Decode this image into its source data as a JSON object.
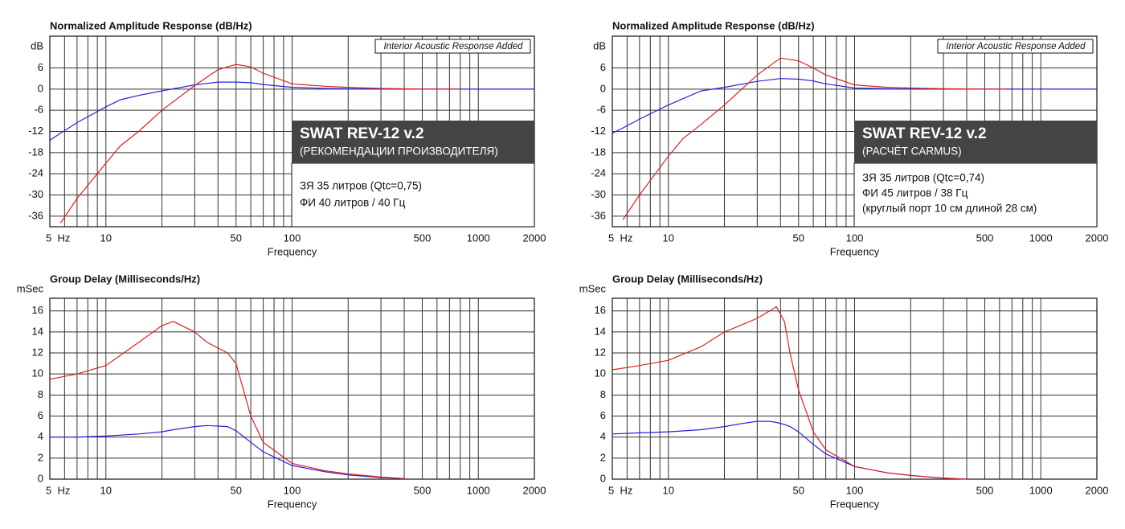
{
  "chart_data": [
    {
      "type": "line",
      "title": "Normalized Amplitude Response (dB/Hz)",
      "x_label": "Frequency",
      "y_label": "dB",
      "xscale": "log",
      "xlim": [
        5,
        2000
      ],
      "xticks": [
        {
          "value": 5,
          "label": "5  Hz"
        },
        10,
        50,
        100,
        500,
        1000,
        2000
      ],
      "xgrid": [
        5,
        6,
        7,
        8,
        9,
        10,
        20,
        30,
        40,
        50,
        60,
        70,
        80,
        90,
        100,
        200,
        300,
        400,
        500,
        600,
        700,
        800,
        900,
        1000,
        2000
      ],
      "ylim": [
        -39,
        15
      ],
      "yticks": [
        -36,
        -30,
        -24,
        -18,
        -12,
        -6,
        0,
        6
      ],
      "grid": true,
      "interior_note": "Interior Acoustic Response Added",
      "box_title": "SWAT REV-12 v.2",
      "box_subtitle": "(РЕКОМЕНДАЦИИ ПРОИЗВОДИТЕЛЯ)",
      "x": [
        5,
        5.7,
        7,
        10,
        12,
        15,
        20,
        30,
        40,
        50,
        60,
        70,
        100,
        150,
        200,
        300,
        500,
        800,
        2000
      ],
      "series": [
        {
          "name": "ЗЯ 35 литров (Qtc=0,75)",
          "color": "#2323e0",
          "values": [
            -14.5,
            -12.5,
            -9.5,
            -5,
            -3,
            -1.8,
            -0.5,
            1.2,
            2,
            2,
            1.8,
            1.3,
            0.5,
            0.2,
            0.1,
            0,
            0,
            0,
            0
          ]
        },
        {
          "name": "ФИ 40 литров / 40 Гц",
          "color": "#e02020",
          "values": [
            null,
            -38,
            -31,
            -21,
            -16,
            -12,
            -6,
            1,
            5.5,
            7,
            6.3,
            4.5,
            1.5,
            0.8,
            0.5,
            0.2,
            0,
            0,
            null
          ]
        }
      ]
    },
    {
      "type": "line",
      "title": "Normalized Amplitude Response (dB/Hz)",
      "x_label": "Frequency",
      "y_label": "dB",
      "xscale": "log",
      "xlim": [
        5,
        2000
      ],
      "xticks": [
        {
          "value": 5,
          "label": "5  Hz"
        },
        10,
        50,
        100,
        500,
        1000,
        2000
      ],
      "xgrid": [
        5,
        6,
        7,
        8,
        9,
        10,
        20,
        30,
        40,
        50,
        60,
        70,
        80,
        90,
        100,
        200,
        300,
        400,
        500,
        600,
        700,
        800,
        900,
        1000,
        2000
      ],
      "ylim": [
        -39,
        15
      ],
      "yticks": [
        -36,
        -30,
        -24,
        -18,
        -12,
        -6,
        0,
        6
      ],
      "grid": true,
      "interior_note": "Interior Acoustic Response Added",
      "box_title": "SWAT REV-12 v.2",
      "box_subtitle": "(РАСЧЁТ CARMUS)",
      "legend_note": "(круглый порт 10 см длиной 28 см)",
      "x": [
        5,
        5.7,
        7,
        10,
        12,
        15,
        20,
        30,
        40,
        50,
        60,
        70,
        100,
        150,
        200,
        300,
        500,
        650,
        2000
      ],
      "series": [
        {
          "name": "ЗЯ 35 литров (Qtc=0,74)",
          "color": "#2323e0",
          "values": [
            -12.5,
            -11,
            -8.5,
            -4.5,
            -2.7,
            -0.5,
            0.5,
            2.2,
            3,
            2.8,
            2.3,
            1.5,
            0.3,
            0.1,
            0,
            0,
            0,
            0,
            0
          ]
        },
        {
          "name": "ФИ 45 литров / 38 Гц",
          "color": "#e02020",
          "values": [
            null,
            -37,
            -30,
            -19,
            -14,
            -10,
            -4.5,
            4,
            8.8,
            8,
            6,
            4,
            1.2,
            0.5,
            0.3,
            0.1,
            0,
            0,
            null
          ]
        }
      ]
    },
    {
      "type": "line",
      "title": "Group Delay (Milliseconds/Hz)",
      "x_label": "Frequency",
      "y_label": "mSec",
      "xscale": "log",
      "xlim": [
        5,
        2000
      ],
      "xticks": [
        {
          "value": 5,
          "label": "5  Hz"
        },
        10,
        50,
        100,
        500,
        1000,
        2000
      ],
      "xgrid": [
        5,
        6,
        7,
        8,
        9,
        10,
        20,
        30,
        40,
        50,
        60,
        70,
        80,
        90,
        100,
        200,
        300,
        400,
        500,
        600,
        700,
        800,
        900,
        1000,
        2000
      ],
      "ylim": [
        0,
        17.2
      ],
      "yticks": [
        0,
        2,
        4,
        6,
        8,
        10,
        12,
        14,
        16
      ],
      "grid": true,
      "x": [
        5,
        7,
        10,
        15,
        20,
        23,
        30,
        35,
        45,
        50,
        60,
        70,
        100,
        150,
        200,
        300,
        400
      ],
      "series": [
        {
          "name": "ЗЯ",
          "color": "#2323e0",
          "values": [
            4,
            4,
            4.1,
            4.3,
            4.5,
            4.7,
            5,
            5.1,
            5,
            4.6,
            3.5,
            2.6,
            1.3,
            0.7,
            0.4,
            0.15,
            0.05
          ]
        },
        {
          "name": "ФИ",
          "color": "#e02020",
          "values": [
            9.5,
            10,
            10.8,
            13,
            14.6,
            15,
            14,
            13,
            12,
            11,
            6,
            3.5,
            1.5,
            0.8,
            0.5,
            0.2,
            0.05
          ]
        }
      ]
    },
    {
      "type": "line",
      "title": "Group Delay (Milliseconds/Hz)",
      "x_label": "Frequency",
      "y_label": "mSec",
      "xscale": "log",
      "xlim": [
        5,
        2000
      ],
      "xticks": [
        {
          "value": 5,
          "label": "5  Hz"
        },
        10,
        50,
        100,
        500,
        1000,
        2000
      ],
      "xgrid": [
        5,
        6,
        7,
        8,
        9,
        10,
        20,
        30,
        40,
        50,
        60,
        70,
        80,
        90,
        100,
        200,
        300,
        400,
        500,
        600,
        700,
        800,
        900,
        1000,
        2000
      ],
      "ylim": [
        0,
        17.2
      ],
      "yticks": [
        0,
        2,
        4,
        6,
        8,
        10,
        12,
        14,
        16
      ],
      "grid": true,
      "x": [
        5,
        7,
        10,
        15,
        20,
        25,
        30,
        35,
        38,
        42,
        45,
        50,
        60,
        70,
        100,
        150,
        200,
        300,
        400
      ],
      "series": [
        {
          "name": "ЗЯ",
          "color": "#2323e0",
          "values": [
            4.3,
            4.4,
            4.5,
            4.7,
            5,
            5.3,
            5.5,
            5.5,
            5.4,
            5.2,
            5,
            4.5,
            3.3,
            2.4,
            1.2,
            0.6,
            0.35,
            0.1,
            0
          ]
        },
        {
          "name": "ФИ",
          "color": "#e02020",
          "values": [
            10.4,
            10.8,
            11.3,
            12.6,
            14,
            14.7,
            15.3,
            16,
            16.4,
            15,
            12,
            8.5,
            4.5,
            2.8,
            1.2,
            0.6,
            0.35,
            0.1,
            0
          ]
        }
      ]
    }
  ]
}
